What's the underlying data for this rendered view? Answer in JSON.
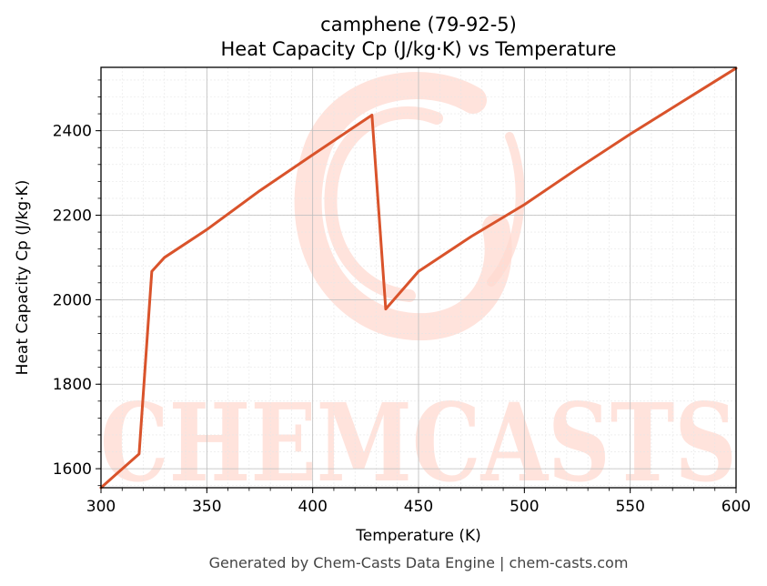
{
  "chart_data": {
    "type": "line",
    "title": "camphene (79-92-5)",
    "subtitle": "Heat Capacity Cp (J/kg·K) vs Temperature",
    "xlabel": "Temperature (K)",
    "ylabel": "Heat Capacity Cp (J/kg·K)",
    "xlim": [
      300,
      600
    ],
    "ylim": [
      1555,
      2550
    ],
    "xticks": [
      300,
      350,
      400,
      450,
      500,
      550,
      600
    ],
    "yticks": [
      1600,
      1800,
      2000,
      2200,
      2400
    ],
    "grid": true,
    "series": [
      {
        "color": "#d9532b",
        "x": [
          300,
          318,
          324,
          330,
          350,
          375,
          400,
          428,
          434.5,
          450,
          475,
          500,
          525,
          550,
          575,
          600
        ],
        "y": [
          1555,
          1635,
          2067,
          2100,
          2166,
          2258,
          2343,
          2437,
          1978,
          2067,
          2150,
          2225,
          2310,
          2392,
          2470,
          2548
        ]
      }
    ]
  },
  "watermark": {
    "text": "CHEMCASTS",
    "color": "#ffd9d0"
  },
  "footer": "Generated by Chem-Casts Data Engine | chem-casts.com"
}
